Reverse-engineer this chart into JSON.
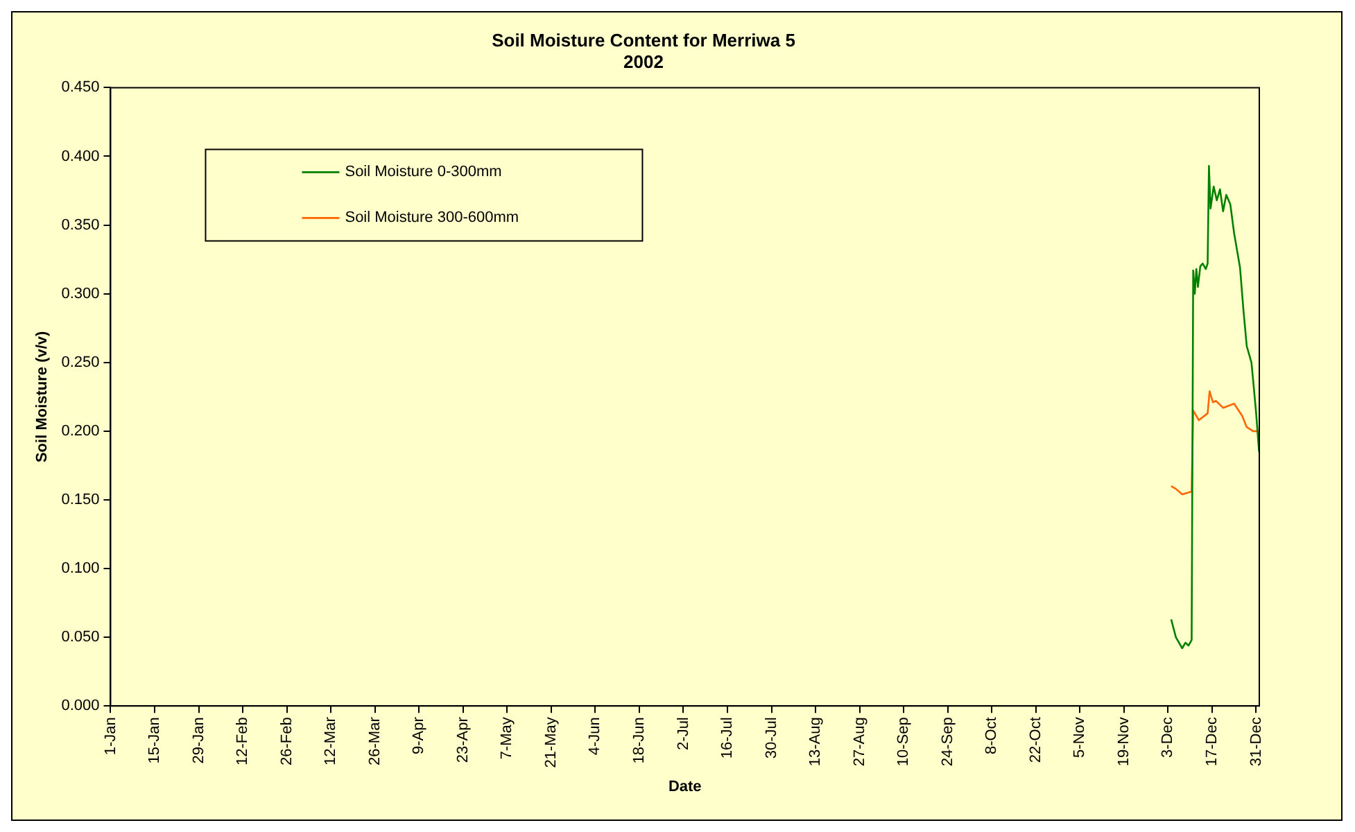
{
  "chart_data": {
    "type": "line",
    "title": "Soil Moisture Content for Merriwa 5",
    "subtitle": "2002",
    "xlabel": "Date",
    "ylabel": "Soil Moisture (v/v)",
    "xlim": [
      "2002-01-01",
      "2003-01-01"
    ],
    "xticks": [
      {
        "value": "2002-01-01",
        "label": "1-Jan"
      },
      {
        "value": "2002-01-15",
        "label": "15-Jan"
      },
      {
        "value": "2002-01-29",
        "label": "29-Jan"
      },
      {
        "value": "2002-02-12",
        "label": "12-Feb"
      },
      {
        "value": "2002-02-26",
        "label": "26-Feb"
      },
      {
        "value": "2002-03-12",
        "label": "12-Mar"
      },
      {
        "value": "2002-03-26",
        "label": "26-Mar"
      },
      {
        "value": "2002-04-09",
        "label": "9-Apr"
      },
      {
        "value": "2002-04-23",
        "label": "23-Apr"
      },
      {
        "value": "2002-05-07",
        "label": "7-May"
      },
      {
        "value": "2002-05-21",
        "label": "21-May"
      },
      {
        "value": "2002-06-04",
        "label": "4-Jun"
      },
      {
        "value": "2002-06-18",
        "label": "18-Jun"
      },
      {
        "value": "2002-07-02",
        "label": "2-Jul"
      },
      {
        "value": "2002-07-16",
        "label": "16-Jul"
      },
      {
        "value": "2002-07-30",
        "label": "30-Jul"
      },
      {
        "value": "2002-08-13",
        "label": "13-Aug"
      },
      {
        "value": "2002-08-27",
        "label": "27-Aug"
      },
      {
        "value": "2002-09-10",
        "label": "10-Sep"
      },
      {
        "value": "2002-09-24",
        "label": "24-Sep"
      },
      {
        "value": "2002-10-08",
        "label": "8-Oct"
      },
      {
        "value": "2002-10-22",
        "label": "22-Oct"
      },
      {
        "value": "2002-11-05",
        "label": "5-Nov"
      },
      {
        "value": "2002-11-19",
        "label": "19-Nov"
      },
      {
        "value": "2002-12-03",
        "label": "3-Dec"
      },
      {
        "value": "2002-12-17",
        "label": "17-Dec"
      },
      {
        "value": "2002-12-31",
        "label": "31-Dec"
      }
    ],
    "ylim": [
      0,
      0.45
    ],
    "yticks": [
      {
        "value": 0,
        "label": "0.000"
      },
      {
        "value": 0.05,
        "label": "0.050"
      },
      {
        "value": 0.1,
        "label": "0.100"
      },
      {
        "value": 0.15,
        "label": "0.150"
      },
      {
        "value": 0.2,
        "label": "0.200"
      },
      {
        "value": 0.25,
        "label": "0.250"
      },
      {
        "value": 0.3,
        "label": "0.300"
      },
      {
        "value": 0.35,
        "label": "0.350"
      },
      {
        "value": 0.4,
        "label": "0.400"
      },
      {
        "value": 0.45,
        "label": "0.450"
      }
    ],
    "legend": "top left",
    "marker": "none",
    "line_style": "solid",
    "series": [
      {
        "name": "Soil Moisture 0-300mm",
        "color": "#008000",
        "x": [
          "2002-12-04T00:00",
          "2002-12-05T12:00",
          "2002-12-07T12:00",
          "2002-12-08T12:00",
          "2002-12-09T12:00",
          "2002-12-10T12:00",
          "2002-12-10T17:00",
          "2002-12-11T00:00",
          "2002-12-11T12:00",
          "2002-12-12T00:00",
          "2002-12-12T12:00",
          "2002-12-13T06:00",
          "2002-12-14T00:00",
          "2002-12-15T00:00",
          "2002-12-15T14:00",
          "2002-12-16T00:00",
          "2002-12-16T12:00",
          "2002-12-17T12:00",
          "2002-12-18T12:00",
          "2002-12-19T12:00",
          "2002-12-20T12:00",
          "2002-12-21T12:00",
          "2002-12-22T19:00",
          "2002-12-24T00:00",
          "2002-12-25T21:00",
          "2002-12-27T00:00",
          "2002-12-28T00:00",
          "2002-12-29T12:00",
          "2002-12-30T00:00",
          "2002-12-31T00:00",
          "2002-12-31T22:00"
        ],
        "values": [
          0.063,
          0.05,
          0.042,
          0.046,
          0.044,
          0.048,
          0.048,
          0.317,
          0.3,
          0.318,
          0.305,
          0.32,
          0.322,
          0.318,
          0.322,
          0.393,
          0.362,
          0.378,
          0.368,
          0.376,
          0.36,
          0.372,
          0.365,
          0.344,
          0.319,
          0.287,
          0.262,
          0.25,
          0.238,
          0.213,
          0.185
        ]
      },
      {
        "name": "Soil Moisture 300-600mm",
        "color": "#ff6600",
        "x": [
          "2002-12-04T00:00",
          "2002-12-05T12:00",
          "2002-12-07T12:00",
          "2002-12-10T12:00",
          "2002-12-10T17:00",
          "2002-12-11T00:00",
          "2002-12-12T19:00",
          "2002-12-15T14:00",
          "2002-12-16T05:00",
          "2002-12-17T06:00",
          "2002-12-18T05:00",
          "2002-12-20T12:00",
          "2002-12-24T00:00",
          "2002-12-26T14:00",
          "2002-12-28T00:00",
          "2002-12-30T00:00",
          "2002-12-31T22:00"
        ],
        "values": [
          0.16,
          0.158,
          0.154,
          0.156,
          0.156,
          0.215,
          0.208,
          0.213,
          0.229,
          0.221,
          0.222,
          0.217,
          0.22,
          0.211,
          0.203,
          0.2,
          0.2
        ]
      }
    ]
  }
}
